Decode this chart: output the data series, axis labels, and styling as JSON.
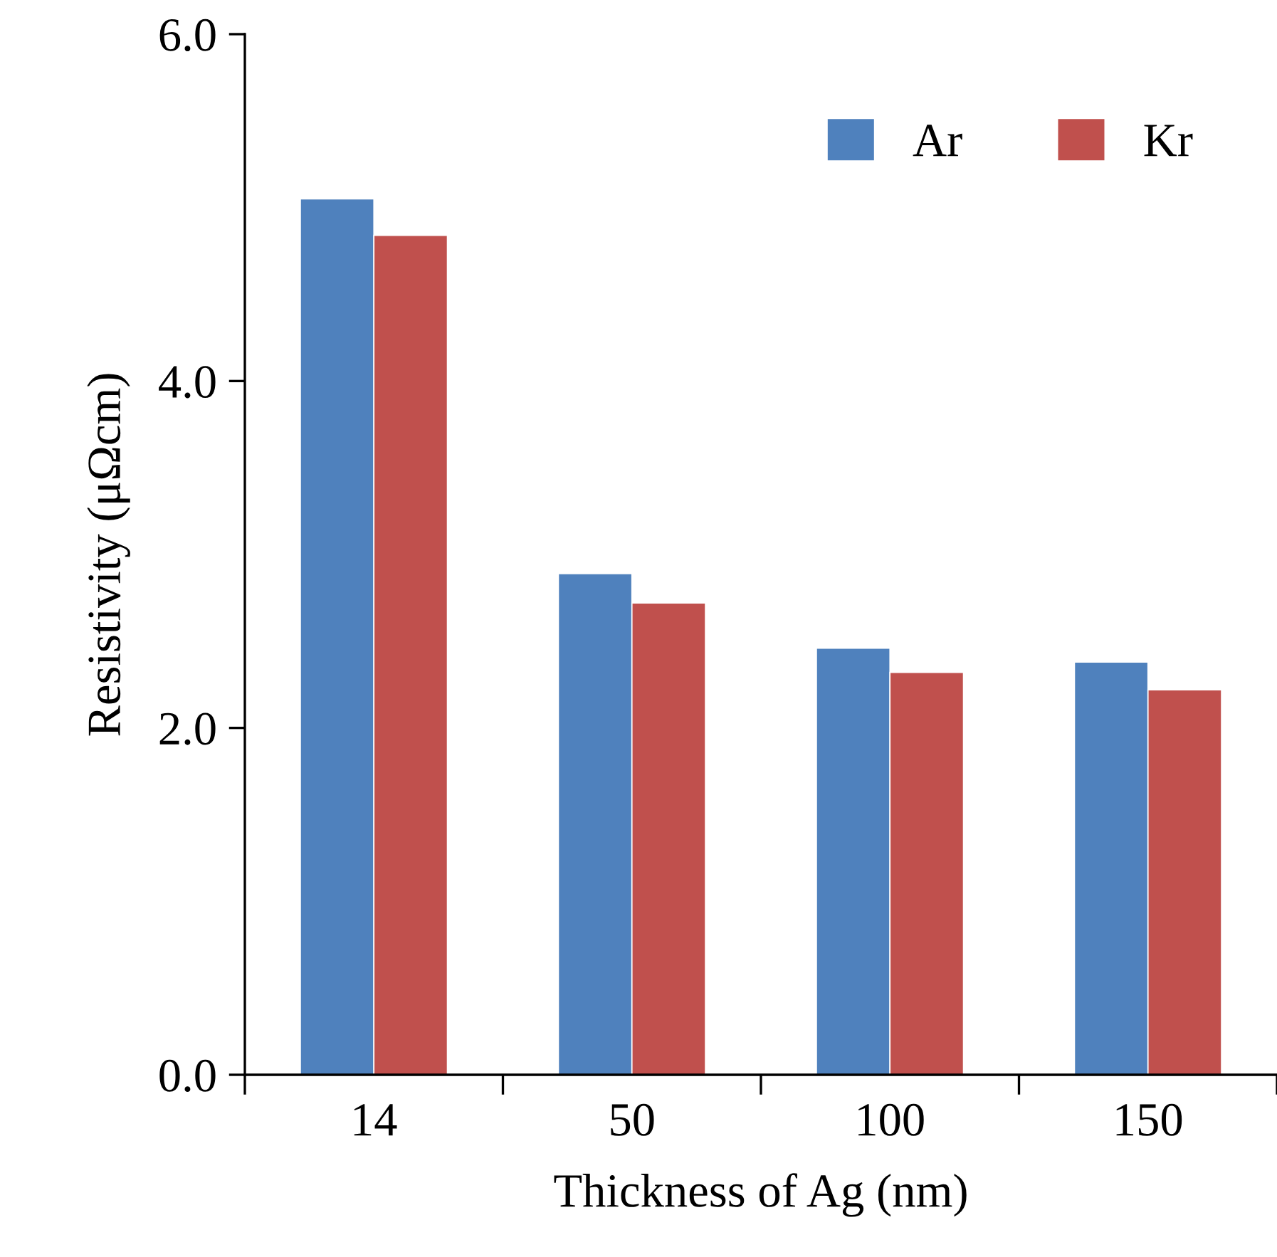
{
  "chart_data": {
    "type": "bar",
    "xlabel": "Thickness of Ag (nm)",
    "ylabel": "Resistivity (μΩcm)",
    "categories": [
      "14",
      "50",
      "100",
      "150"
    ],
    "series": [
      {
        "name": "Ar",
        "color": "#4f81bd",
        "values": [
          5.05,
          2.89,
          2.46,
          2.38
        ]
      },
      {
        "name": "Kr",
        "color": "#c0504d",
        "values": [
          4.84,
          2.72,
          2.32,
          2.22
        ]
      }
    ],
    "ylim": [
      0,
      6
    ],
    "yticks": [
      {
        "value": 0,
        "label": "0.0"
      },
      {
        "value": 2,
        "label": "2.0"
      },
      {
        "value": 4,
        "label": "4.0"
      },
      {
        "value": 6,
        "label": "6.0"
      }
    ],
    "grid": false,
    "legend": "top right"
  }
}
